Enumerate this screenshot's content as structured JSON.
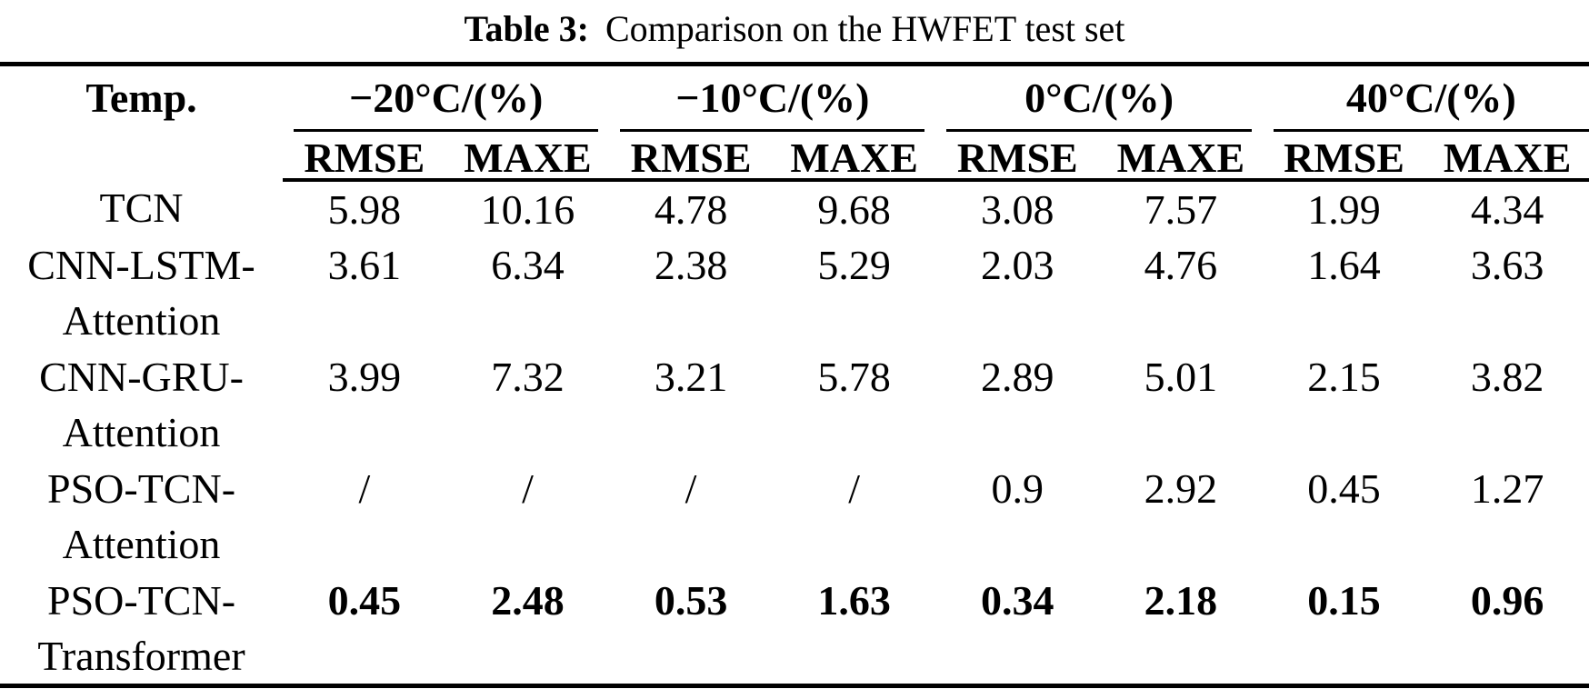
{
  "caption": {
    "label": "Table 3:",
    "text": "Comparison on the HWFET test set"
  },
  "table": {
    "corner_header": "Temp.",
    "groups": [
      {
        "label": "−20°C/(%)"
      },
      {
        "label": "−10°C/(%)"
      },
      {
        "label": "0°C/(%)"
      },
      {
        "label": "40°C/(%)"
      }
    ],
    "sub_headers": [
      "RMSE",
      "MAXE",
      "RMSE",
      "MAXE",
      "RMSE",
      "MAXE",
      "RMSE",
      "MAXE"
    ],
    "rows": [
      {
        "model": [
          "TCN"
        ],
        "values": [
          "5.98",
          "10.16",
          "4.78",
          "9.68",
          "3.08",
          "7.57",
          "1.99",
          "4.34"
        ]
      },
      {
        "model": [
          "CNN-LSTM-",
          "Attention"
        ],
        "values": [
          "3.61",
          "6.34",
          "2.38",
          "5.29",
          "2.03",
          "4.76",
          "1.64",
          "3.63"
        ]
      },
      {
        "model": [
          "CNN-GRU-",
          "Attention"
        ],
        "values": [
          "3.99",
          "7.32",
          "3.21",
          "5.78",
          "2.89",
          "5.01",
          "2.15",
          "3.82"
        ]
      },
      {
        "model": [
          "PSO-TCN-",
          "Attention"
        ],
        "values": [
          "/",
          "/",
          "/",
          "/",
          "0.9",
          "2.92",
          "0.45",
          "1.27"
        ]
      },
      {
        "model": [
          "PSO-TCN-",
          "Transformer"
        ],
        "values": [
          "0.45",
          "2.48",
          "0.53",
          "1.63",
          "0.34",
          "2.18",
          "0.15",
          "0.96"
        ],
        "emphasis": "bold"
      }
    ],
    "colors": {
      "background": "#ffffff",
      "text": "#000000",
      "rules": "#000000"
    }
  }
}
